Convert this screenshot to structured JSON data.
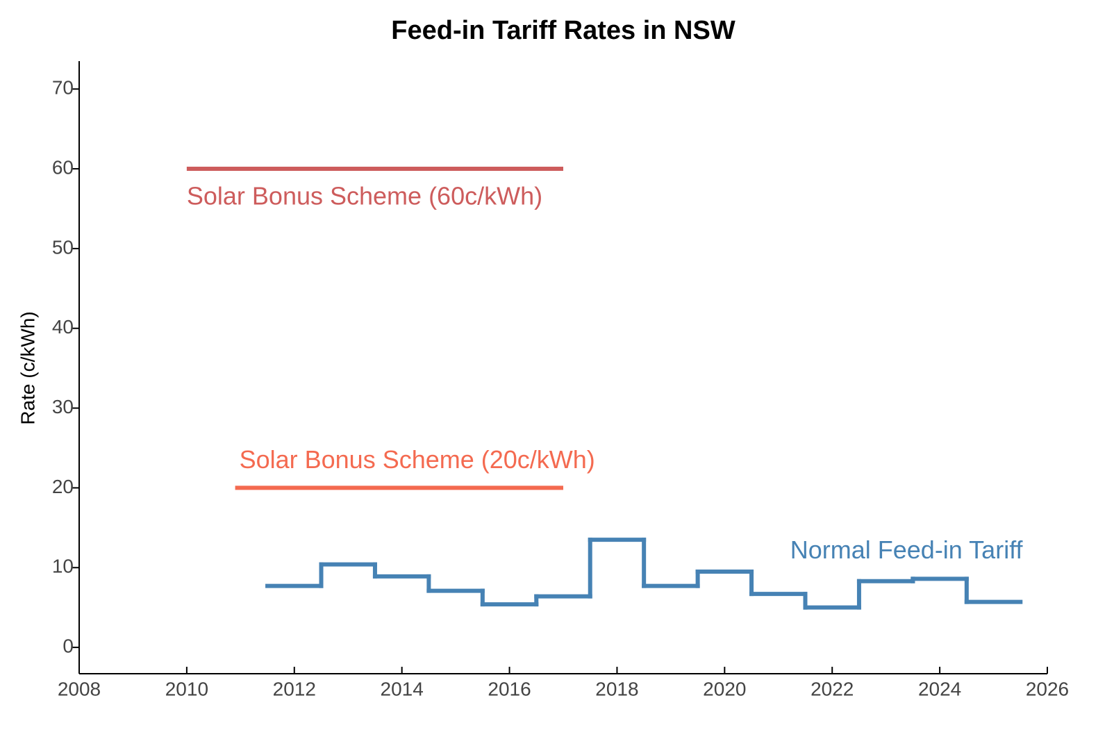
{
  "chart_data": {
    "type": "line",
    "title": "Feed-in Tariff Rates in NSW",
    "y_label": "Rate (c/kWh)",
    "xlim": [
      2008,
      2026
    ],
    "xticks": [
      2008,
      2010,
      2012,
      2014,
      2016,
      2018,
      2020,
      2022,
      2024,
      2026
    ],
    "ylim": [
      -3.3,
      73.5
    ],
    "yticks": [
      0,
      10,
      20,
      30,
      40,
      50,
      60,
      70
    ],
    "grid": false,
    "series": [
      {
        "name": "Solar Bonus Scheme (60c/kWh)",
        "color": "#cd5c5c",
        "x": [
          2010,
          2017
        ],
        "values": [
          60,
          60
        ]
      },
      {
        "name": "Solar Bonus Scheme (20c/kWh)",
        "color": "#f46a50",
        "x": [
          2010.9,
          2017
        ],
        "values": [
          20,
          20
        ]
      },
      {
        "name": "Normal Feed-in Tariff",
        "color": "#4682b4",
        "step": "mid",
        "x": [
          2012,
          2013,
          2014,
          2015,
          2016,
          2017,
          2018,
          2019,
          2020,
          2021,
          2022,
          2023,
          2024,
          2025
        ],
        "values": [
          7.7,
          10.4,
          8.9,
          7.1,
          5.4,
          6.4,
          13.5,
          7.7,
          9.5,
          6.7,
          5.0,
          8.3,
          8.6,
          5.7
        ]
      }
    ]
  }
}
